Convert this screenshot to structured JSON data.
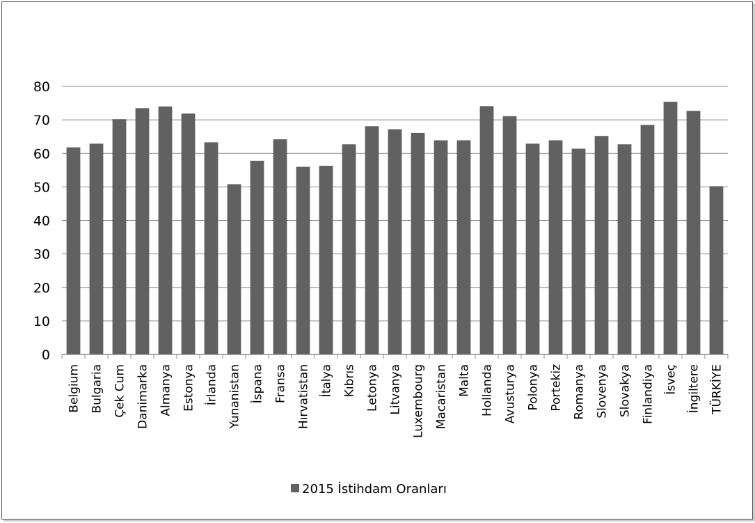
{
  "chart_data": {
    "type": "bar",
    "title": "",
    "xlabel": "",
    "ylabel": "",
    "ylim": [
      0,
      80
    ],
    "yticks": [
      "0",
      "10",
      "20",
      "30",
      "40",
      "50",
      "60",
      "70",
      "80"
    ],
    "grid": true,
    "legend_position": "bottom",
    "colors": {
      "bar": "#616161",
      "grid": "#8c8c8c",
      "axis": "#8c8c8c"
    },
    "categories": [
      "Belgium",
      "Bulgaria",
      "Çek Cum",
      "Danimarka",
      "Almanya",
      "Estonya",
      "İrlanda",
      "Yunanistan",
      "İspana",
      "Fransa",
      "Hırvatistan",
      "İtalya",
      "Kıbrıs",
      "Letonya",
      "Litvanya",
      "Luxembourg",
      "Macaristan",
      "Malta",
      "Hollanda",
      "Avusturya",
      "Polonya",
      "Portekiz",
      "Romanya",
      "Slovenya",
      "Slovakya",
      "Finlandiya",
      "İsveç",
      "İngiltere",
      "TÜRKİYE"
    ],
    "series": [
      {
        "name": "2015 İstihdam Oranları",
        "values": [
          61.8,
          62.9,
          70.2,
          73.5,
          74.0,
          71.9,
          63.3,
          50.8,
          57.8,
          64.2,
          56.0,
          56.3,
          62.7,
          68.1,
          67.2,
          66.1,
          63.9,
          63.9,
          74.1,
          71.1,
          62.9,
          63.9,
          61.4,
          65.2,
          62.7,
          68.5,
          75.4,
          72.7,
          50.2
        ]
      }
    ]
  }
}
